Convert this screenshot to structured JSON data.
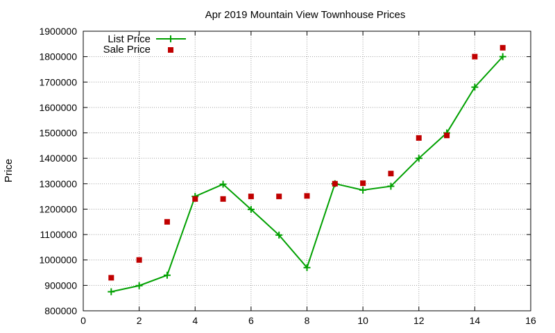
{
  "chart_data": {
    "type": "line",
    "title": "Apr 2019 Mountain View Townhouse Prices",
    "xlabel": "",
    "ylabel": "Price",
    "xlim": [
      0,
      16
    ],
    "ylim": [
      800000,
      1900000
    ],
    "xticks": [
      0,
      2,
      4,
      6,
      8,
      10,
      12,
      14,
      16
    ],
    "yticks": [
      800000,
      900000,
      1000000,
      1100000,
      1200000,
      1300000,
      1400000,
      1500000,
      1600000,
      1700000,
      1800000,
      1900000
    ],
    "grid": true,
    "legend_position": "top-left",
    "series": [
      {
        "name": "List Price",
        "kind": "line-points",
        "color": "#00a000",
        "x": [
          1,
          2,
          3,
          4,
          5,
          6,
          7,
          8,
          9,
          10,
          11,
          12,
          13,
          14,
          15
        ],
        "values": [
          875000,
          899000,
          940000,
          1250000,
          1298000,
          1199000,
          1098000,
          970000,
          1300000,
          1275000,
          1290000,
          1400000,
          1500000,
          1680000,
          1800000
        ]
      },
      {
        "name": "Sale Price",
        "kind": "points",
        "color": "#c00000",
        "x": [
          1,
          2,
          3,
          4,
          5,
          6,
          7,
          8,
          9,
          10,
          11,
          12,
          13,
          14,
          15
        ],
        "values": [
          930000,
          1000000,
          1150000,
          1240000,
          1240000,
          1250000,
          1250000,
          1252000,
          1300000,
          1302000,
          1340000,
          1480000,
          1490000,
          1800000,
          1835000
        ]
      }
    ]
  }
}
